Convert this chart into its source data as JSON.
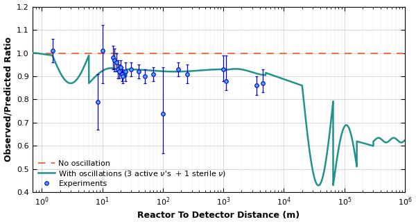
{
  "xlabel": "Reactor To Detector Distance (m)",
  "ylabel": "Observed/Predicted Ratio",
  "xlim": [
    0.7,
    1000000.0
  ],
  "ylim": [
    0.4,
    1.2
  ],
  "yticks": [
    0.4,
    0.5,
    0.6,
    0.7,
    0.8,
    0.9,
    1.0,
    1.1,
    1.2
  ],
  "no_oscillation_color": "#e8724a",
  "oscillation_color": "#20928c",
  "oscillation_linewidth": 1.8,
  "experiment_color": "#0000cc",
  "experiment_facecolor": "#4da6ff",
  "experiment_marker": "o",
  "experiment_markersize": 4,
  "legend_fontsize": 8,
  "experiments": {
    "x": [
      1.5,
      8.5,
      10.0,
      15.0,
      16.0,
      17.0,
      18.0,
      19.0,
      20.0,
      21.0,
      22.0,
      24.0,
      30.0,
      40.0,
      50.0,
      70.0,
      100.0,
      180.0,
      250.0,
      1000.0,
      1100.0,
      3500.0,
      4500.0
    ],
    "y": [
      1.01,
      0.79,
      1.01,
      0.98,
      0.97,
      0.96,
      0.93,
      0.92,
      0.94,
      0.91,
      0.9,
      0.92,
      0.93,
      0.92,
      0.9,
      0.91,
      0.74,
      0.93,
      0.91,
      0.93,
      0.88,
      0.86,
      0.87
    ],
    "yerr_lo": [
      0.05,
      0.12,
      0.14,
      0.05,
      0.05,
      0.04,
      0.04,
      0.03,
      0.03,
      0.03,
      0.03,
      0.04,
      0.03,
      0.03,
      0.03,
      0.03,
      0.17,
      0.03,
      0.04,
      0.05,
      0.04,
      0.04,
      0.04
    ],
    "yerr_hi": [
      0.05,
      0.12,
      0.11,
      0.05,
      0.05,
      0.04,
      0.04,
      0.03,
      0.03,
      0.03,
      0.03,
      0.04,
      0.03,
      0.03,
      0.03,
      0.03,
      0.2,
      0.03,
      0.04,
      0.06,
      0.11,
      0.04,
      0.06
    ]
  },
  "background_color": "#ffffff",
  "grid_major_color": "#bbbbbb",
  "grid_minor_color": "#dddddd"
}
